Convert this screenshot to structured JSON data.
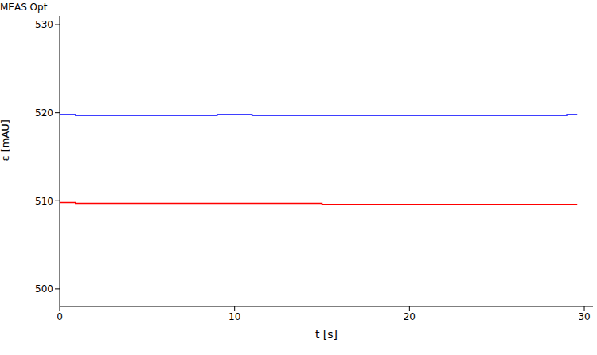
{
  "chart_data": {
    "type": "line",
    "title": "MEAS Opt",
    "x_label": "t [s]",
    "y_label": "ε [mAU]",
    "x": [
      0,
      0.9,
      9,
      11,
      15,
      29,
      29.6
    ],
    "series": [
      {
        "color": "#0000ff",
        "values": [
          519.8,
          519.7,
          519.8,
          519.7,
          519.7,
          519.8,
          519.8
        ],
        "line_style": "step"
      },
      {
        "color": "#ff0000",
        "values": [
          509.8,
          509.7,
          509.7,
          509.7,
          509.6,
          509.6,
          509.6
        ],
        "line_style": "step"
      }
    ],
    "xlim": [
      0,
      30.5
    ],
    "xticks": [
      0,
      10,
      20,
      30
    ],
    "ylim": [
      498,
      531
    ],
    "yticks": [
      500,
      510,
      520,
      530
    ],
    "grid": false
  }
}
